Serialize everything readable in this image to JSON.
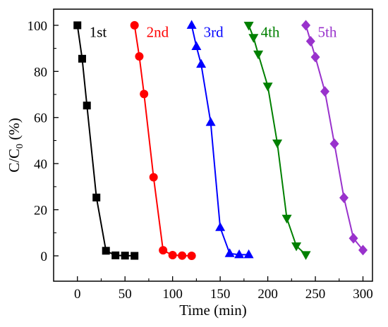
{
  "chart_data": {
    "type": "line",
    "xlabel": "Time (min)",
    "ylabel_main": "C/C",
    "ylabel_sub": "0",
    "ylabel_tail": " (%)",
    "xlim": [
      -25,
      310
    ],
    "ylim": [
      -11,
      107
    ],
    "x_ticks": [
      0,
      50,
      100,
      150,
      200,
      250,
      300
    ],
    "y_ticks": [
      0,
      20,
      40,
      60,
      80,
      100
    ],
    "grid": false,
    "legend": "none",
    "series": [
      {
        "name": "1st",
        "color": "#000000",
        "marker": "square",
        "x": [
          0,
          5,
          10,
          20,
          30,
          40,
          50,
          60
        ],
        "y": [
          100,
          85.5,
          65.2,
          25.3,
          2.2,
          0.2,
          0.1,
          0
        ]
      },
      {
        "name": "2nd",
        "color": "#ff0000",
        "marker": "circle",
        "x": [
          60,
          65,
          70,
          80,
          90,
          100,
          110,
          120
        ],
        "y": [
          100,
          86.5,
          70.2,
          34.1,
          2.4,
          0.3,
          0.1,
          0
        ]
      },
      {
        "name": "3rd",
        "color": "#0000ff",
        "marker": "triangle-up",
        "x": [
          120,
          125,
          130,
          140,
          150,
          160,
          170,
          180
        ],
        "y": [
          100,
          90.8,
          83.1,
          57.9,
          12.3,
          1,
          0.5,
          0.5
        ]
      },
      {
        "name": "4th",
        "color": "#008000",
        "marker": "triangle-down",
        "x": [
          180,
          185,
          190,
          200,
          210,
          220,
          230,
          240
        ],
        "y": [
          100,
          94.7,
          87.5,
          73.6,
          48.9,
          16.3,
          4.3,
          0.5
        ]
      },
      {
        "name": "5th",
        "color": "#9932cc",
        "marker": "diamond",
        "x": [
          240,
          245,
          250,
          260,
          270,
          280,
          290,
          300
        ],
        "y": [
          100,
          93.1,
          86.2,
          71.3,
          48.6,
          25.2,
          7.6,
          2.5
        ]
      }
    ]
  }
}
